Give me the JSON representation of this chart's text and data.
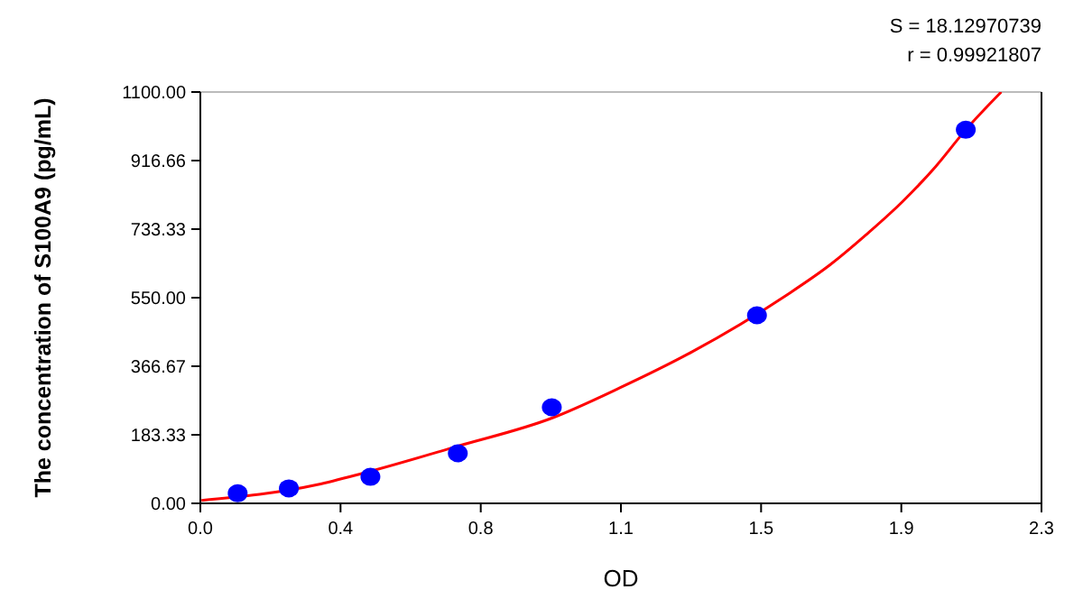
{
  "chart_data": {
    "type": "scatter",
    "xlabel": "OD",
    "ylabel": "The concentration of S100A9 (pg/mL)",
    "annotations": [
      "S = 18.12970739",
      "r = 0.99921807"
    ],
    "xlim": [
      0,
      2.3
    ],
    "ylim": [
      0,
      1100
    ],
    "xticks": [
      {
        "value": 0,
        "label": "0.0"
      },
      {
        "value": 0.3833,
        "label": "0.4"
      },
      {
        "value": 0.7667,
        "label": "0.8"
      },
      {
        "value": 1.15,
        "label": "1.1"
      },
      {
        "value": 1.5333,
        "label": "1.5"
      },
      {
        "value": 1.9167,
        "label": "1.9"
      },
      {
        "value": 2.3,
        "label": "2.3"
      }
    ],
    "yticks": [
      {
        "value": 0,
        "label": "0.00"
      },
      {
        "value": 183.33,
        "label": "183.33"
      },
      {
        "value": 366.67,
        "label": "366.67"
      },
      {
        "value": 550,
        "label": "550.00"
      },
      {
        "value": 733.33,
        "label": "733.33"
      },
      {
        "value": 916.66,
        "label": "916.66"
      },
      {
        "value": 1100,
        "label": "1100.00"
      }
    ],
    "grid": false,
    "series": [
      {
        "type": "line",
        "marker": "none",
        "color": "#ff0000",
        "x": [
          0.003,
          0.32,
          0.439,
          0.704,
          0.961,
          1.147,
          1.344,
          1.6,
          1.722,
          1.82,
          1.92,
          2.01,
          2.093,
          2.19
        ],
        "values": [
          8,
          50,
          79,
          153,
          228,
          309,
          405,
          555,
          638,
          718,
          807,
          900,
          999,
          1100
        ]
      },
      {
        "marker": "circle",
        "color": "#0000ff",
        "x": [
          0.102,
          0.242,
          0.465,
          0.704,
          0.961,
          1.522,
          2.093
        ],
        "values": [
          27,
          40,
          71,
          134,
          257,
          503,
          999
        ]
      }
    ]
  }
}
